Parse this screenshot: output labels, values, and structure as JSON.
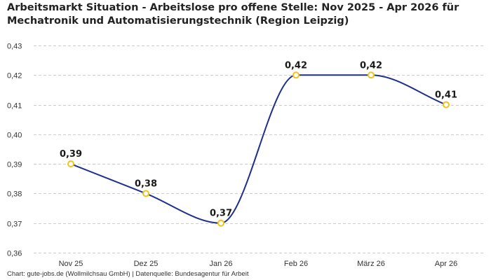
{
  "title": "Arbeitsmarkt Situation - Arbeitslose pro offene Stelle: Nov 2025 - Apr 2026 für Mechatronik und Automatisierungstechnik (Region Leipzig)",
  "footer": "Chart: gute-jobs.de (Wollmilchsau GmbH) | Datenquelle: Bundesagentur für Arbeit",
  "colors": {
    "line": "#1f2f8c",
    "marker_stroke": "#f0c419",
    "marker_fill": "#ffffff",
    "grid": "#cccccc"
  },
  "chart_data": {
    "type": "line",
    "title": "Arbeitsmarkt Situation - Arbeitslose pro offene Stelle: Nov 2025 - Apr 2026 für Mechatronik und Automatisierungstechnik (Region Leipzig)",
    "xlabel": "",
    "ylabel": "",
    "categories": [
      "Nov 25",
      "Dez 25",
      "Jan 26",
      "Feb 26",
      "März 26",
      "Apr 26"
    ],
    "values": [
      0.39,
      0.38,
      0.37,
      0.42,
      0.42,
      0.41
    ],
    "value_labels": [
      "0,39",
      "0,38",
      "0,37",
      "0,42",
      "0,42",
      "0,41"
    ],
    "ylim": [
      0.36,
      0.43
    ],
    "yticks": [
      0.36,
      0.37,
      0.38,
      0.39,
      0.4,
      0.41,
      0.42,
      0.43
    ],
    "ytick_labels": [
      "0,36",
      "0,37",
      "0,38",
      "0,39",
      "0,40",
      "0,41",
      "0,42",
      "0,43"
    ],
    "grid": "horizontal dashed",
    "legend": "none",
    "smooth": true
  }
}
